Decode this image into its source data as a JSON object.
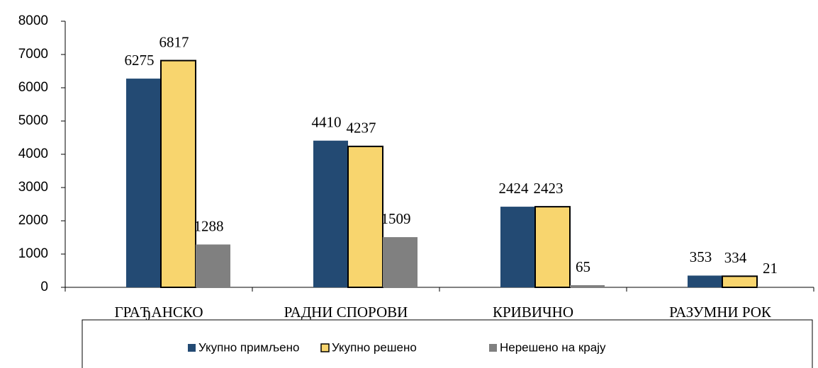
{
  "chart_data": {
    "type": "bar",
    "categories": [
      "ГРАЂАНСКО",
      "РАДНИ СПОРОВИ",
      "КРИВИЧНО",
      "РАЗУМНИ РОК"
    ],
    "series": [
      {
        "name": "Укупно примљено",
        "color": "#234a73",
        "values": [
          6275,
          4410,
          2424,
          353
        ]
      },
      {
        "name": "Укупно решено",
        "color": "#f8d56e",
        "values": [
          6817,
          4237,
          2423,
          334
        ]
      },
      {
        "name": "Нерешено на крају",
        "color": "#808080",
        "values": [
          1288,
          1509,
          65,
          21
        ]
      }
    ],
    "ylim": [
      0,
      8000
    ],
    "yticks": [
      0,
      1000,
      2000,
      3000,
      4000,
      5000,
      6000,
      7000,
      8000
    ],
    "legend": "bottom"
  }
}
